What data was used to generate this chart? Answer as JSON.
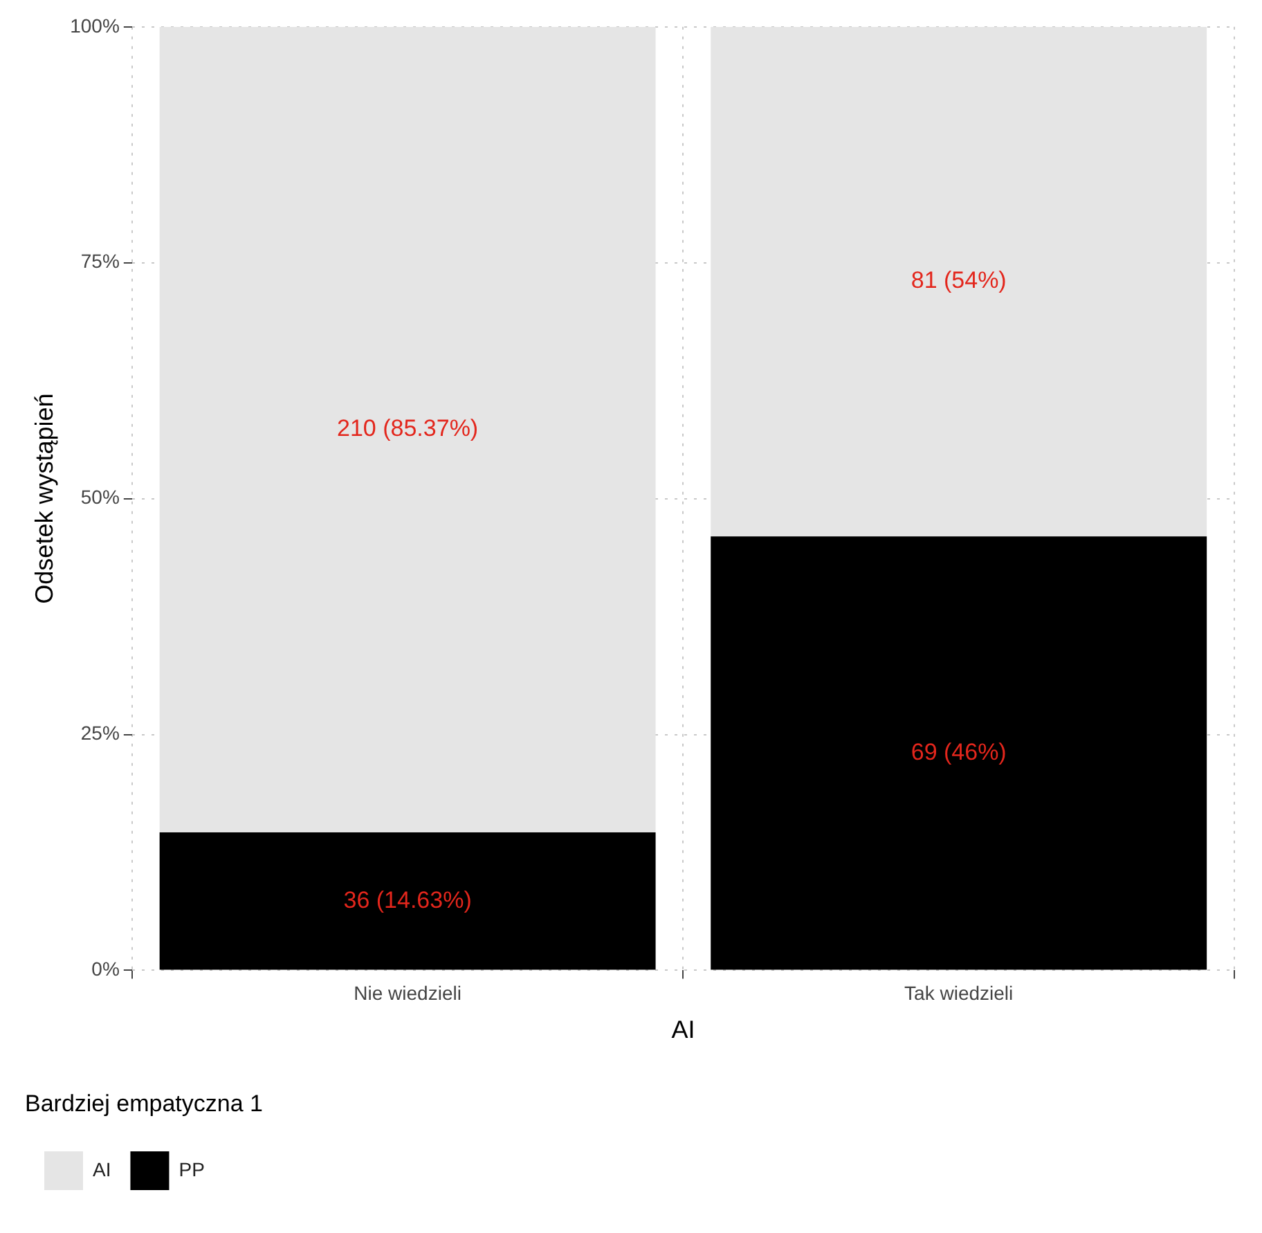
{
  "chart_data": {
    "type": "bar",
    "stacked": true,
    "xlabel": "AI",
    "ylabel": "Odsetek wystąpień",
    "legend_title": "Bardziej empatyczna 1",
    "categories": [
      "Nie wiedzieli",
      "Tak wiedzieli"
    ],
    "series": [
      {
        "name": "PP",
        "color": "#000000",
        "values": [
          14.63,
          46
        ],
        "value_labels": [
          "36 (14.63%)",
          "69 (46%)"
        ]
      },
      {
        "name": "AI",
        "color": "#e5e5e5",
        "values": [
          85.37,
          54
        ],
        "value_labels": [
          "210 (85.37%)",
          "81 (54%)"
        ]
      }
    ],
    "ylim": [
      0,
      100
    ],
    "yticks": [
      {
        "value": 0,
        "label": "0%"
      },
      {
        "value": 25,
        "label": "25%"
      },
      {
        "value": 50,
        "label": "50%"
      },
      {
        "value": 75,
        "label": "75%"
      },
      {
        "value": 100,
        "label": "100%"
      }
    ],
    "grid": true,
    "legend": "bottom"
  }
}
